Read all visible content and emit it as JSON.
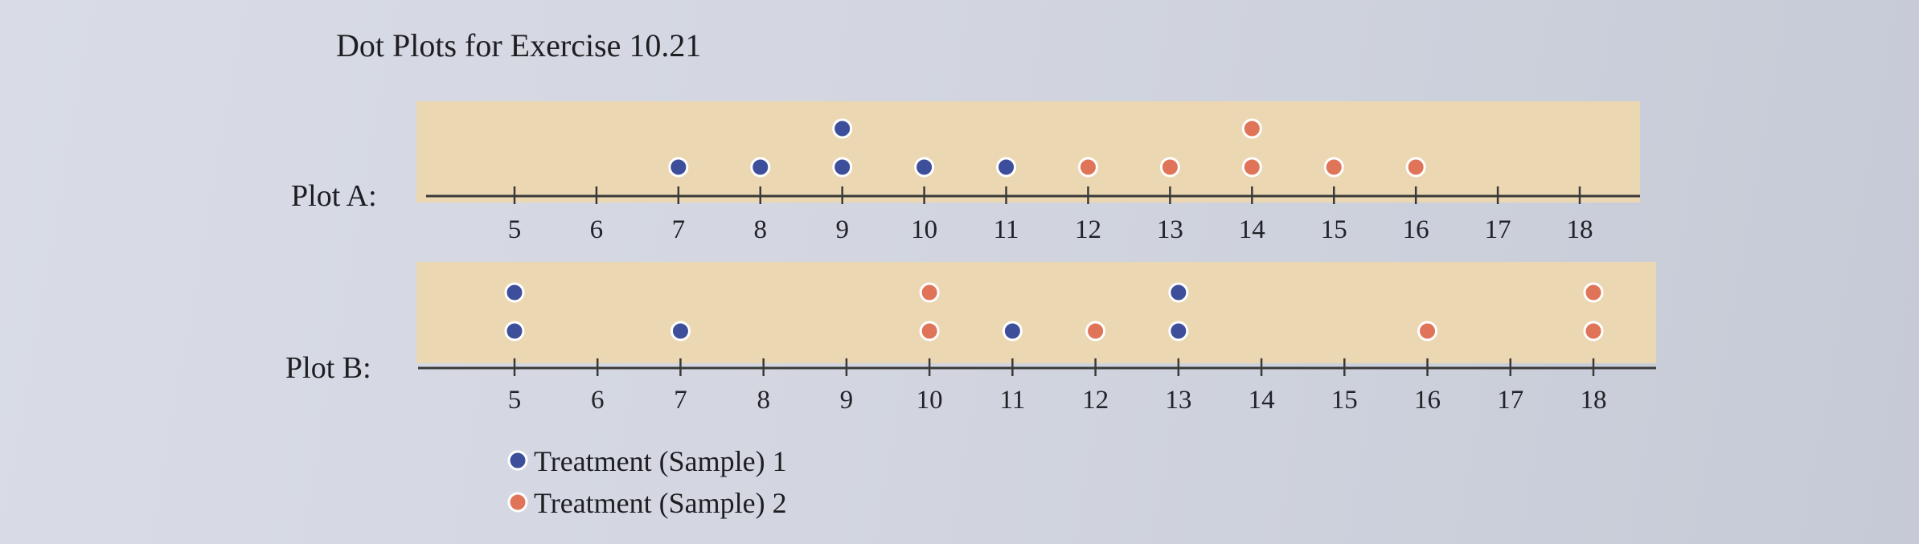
{
  "colors": {
    "series_1": "#3d4f9a",
    "series_2": "#e07458"
  },
  "chart_data": {
    "type": "scatter",
    "title": "Dot Plots for Exercise 10.21",
    "x_ticks": [
      5,
      6,
      7,
      8,
      9,
      10,
      11,
      12,
      13,
      14,
      15,
      16,
      17,
      18
    ],
    "xlim": [
      4.4,
      19.0
    ],
    "legend": {
      "placement": "bottom-left",
      "entries": [
        "Treatment (Sample) 1",
        "Treatment (Sample) 2"
      ]
    },
    "plots": [
      {
        "label": "Plot A:",
        "series": [
          {
            "name": "Treatment (Sample) 1",
            "values": [
              7,
              8,
              9,
              9,
              10,
              11
            ]
          },
          {
            "name": "Treatment (Sample) 2",
            "values": [
              12,
              13,
              14,
              14,
              15,
              16
            ]
          }
        ]
      },
      {
        "label": "Plot B:",
        "series": [
          {
            "name": "Treatment (Sample) 1",
            "values": [
              5,
              5,
              7,
              11,
              13,
              13
            ]
          },
          {
            "name": "Treatment (Sample) 2",
            "values": [
              10,
              10,
              12,
              16,
              18,
              18
            ]
          }
        ]
      }
    ]
  }
}
